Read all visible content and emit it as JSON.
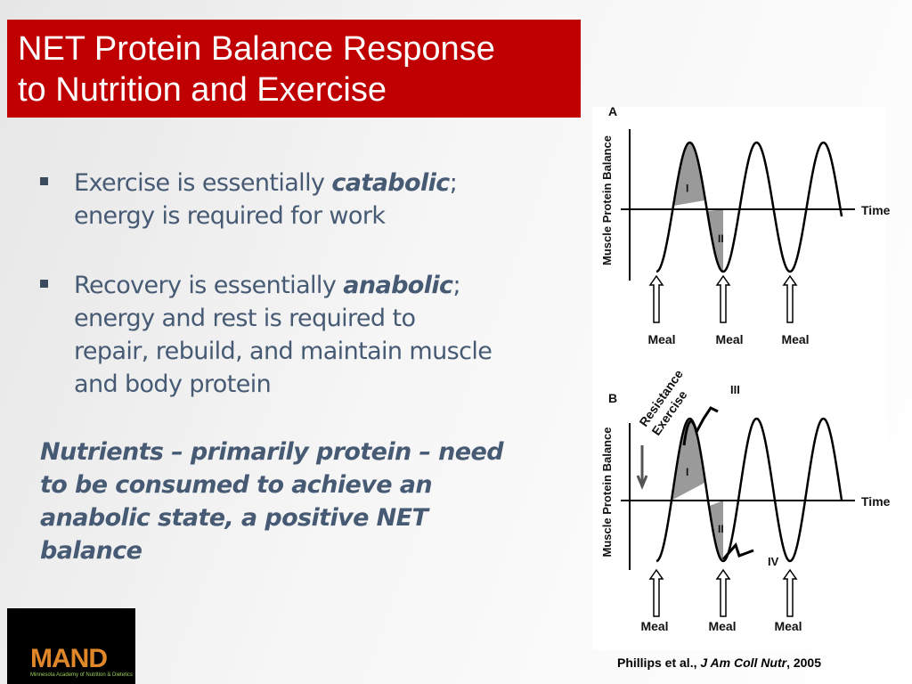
{
  "header": {
    "title": [
      "NET Protein Balance Response",
      "to Nutrition and Exercise"
    ]
  },
  "bullets": [
    [
      "Exercise is essentially ",
      "catabolic",
      "; energy is required for work"
    ],
    [
      "Recovery is essentially ",
      "anabolic",
      "; energy and rest is required to repair,  rebuild, and maintain muscle and body protein"
    ]
  ],
  "conclusion": "Nutrients – primarily protein – need to be consumed to achieve an anabolic state, a positive NET balance",
  "figure": {
    "panels": [
      {
        "label": "A",
        "y_axis": "Muscle Protein Balance",
        "x_axis": "Time",
        "regions": [
          "I",
          "II"
        ],
        "meals": [
          "Meal",
          "Meal",
          "Meal"
        ]
      },
      {
        "label": "B",
        "y_axis": "Muscle Protein Balance",
        "x_axis": "Time",
        "regions": [
          "I",
          "II"
        ],
        "meals": [
          "Meal",
          "Meal",
          "Meal"
        ],
        "exercise": [
          "Resistance",
          "Exercise"
        ],
        "extra_regions": [
          "III",
          "IV"
        ]
      }
    ]
  },
  "citation": [
    "Phillips et al., ",
    "J Am Coll Nutr",
    ", 2005"
  ],
  "logo": {
    "name": "MAND",
    "subtitle": "Minnesota Academy of Nutrition & Dietetics"
  }
}
